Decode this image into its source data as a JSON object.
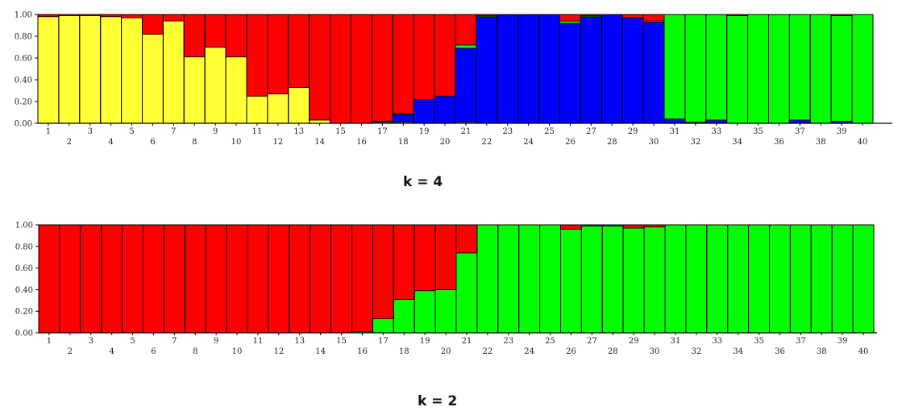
{
  "colors": {
    "yellow": "#ffff33",
    "red": "#ff0000",
    "blue": "#0000ff",
    "green": "#00ff00",
    "outline": "#000000"
  },
  "chart_data": [
    {
      "type": "bar",
      "stacked": true,
      "caption": "k = 4",
      "ylim": [
        0,
        1
      ],
      "yticks": [
        "0.00",
        "0.20",
        "0.40",
        "0.60",
        "0.80",
        "1.00"
      ],
      "categories": [
        "1",
        "2",
        "3",
        "4",
        "5",
        "6",
        "7",
        "8",
        "9",
        "10",
        "11",
        "12",
        "13",
        "14",
        "15",
        "16",
        "17",
        "18",
        "19",
        "20",
        "21",
        "22",
        "23",
        "24",
        "25",
        "26",
        "27",
        "28",
        "29",
        "30",
        "31",
        "32",
        "33",
        "34",
        "35",
        "36",
        "37",
        "38",
        "39",
        "40"
      ],
      "grid": false,
      "series": [
        {
          "color": "yellow",
          "values": [
            0.98,
            0.99,
            0.99,
            0.98,
            0.97,
            0.82,
            0.94,
            0.61,
            0.7,
            0.61,
            0.25,
            0.27,
            0.33,
            0.03,
            0.0,
            0.0,
            0.01,
            0.01,
            0.0,
            0.0,
            0.01,
            0.0,
            0.0,
            0.0,
            0.0,
            0.0,
            0.0,
            0.0,
            0.0,
            0.0,
            0.0,
            0.0,
            0.0,
            0.0,
            0.0,
            0.0,
            0.0,
            0.0,
            0.0,
            0.0
          ]
        },
        {
          "color": "blue",
          "values": [
            0.0,
            0.0,
            0.0,
            0.0,
            0.0,
            0.0,
            0.0,
            0.0,
            0.0,
            0.0,
            0.0,
            0.0,
            0.0,
            0.0,
            0.0,
            0.0,
            0.01,
            0.07,
            0.22,
            0.25,
            0.68,
            0.98,
            1.0,
            1.0,
            1.0,
            0.92,
            0.98,
            1.0,
            0.97,
            0.93,
            0.04,
            0.01,
            0.03,
            0.0,
            0.0,
            0.0,
            0.03,
            0.0,
            0.02,
            0.0
          ]
        },
        {
          "color": "green",
          "values": [
            0.0,
            0.0,
            0.0,
            0.0,
            0.0,
            0.0,
            0.0,
            0.0,
            0.0,
            0.0,
            0.0,
            0.0,
            0.0,
            0.0,
            0.0,
            0.0,
            0.0,
            0.01,
            0.0,
            0.0,
            0.03,
            0.01,
            0.0,
            0.0,
            0.0,
            0.02,
            0.01,
            0.0,
            0.0,
            0.01,
            0.96,
            0.99,
            0.97,
            0.99,
            1.0,
            1.0,
            0.97,
            1.0,
            0.97,
            1.0
          ]
        },
        {
          "color": "red",
          "values": [
            0.02,
            0.01,
            0.01,
            0.02,
            0.03,
            0.18,
            0.06,
            0.39,
            0.3,
            0.39,
            0.75,
            0.73,
            0.67,
            0.97,
            1.0,
            1.0,
            0.98,
            0.91,
            0.78,
            0.75,
            0.28,
            0.01,
            0.0,
            0.0,
            0.0,
            0.06,
            0.01,
            0.0,
            0.03,
            0.06,
            0.0,
            0.0,
            0.0,
            0.01,
            0.0,
            0.0,
            0.0,
            0.0,
            0.01,
            0.0
          ]
        }
      ]
    },
    {
      "type": "bar",
      "stacked": true,
      "caption": "k = 2",
      "ylim": [
        0,
        1
      ],
      "yticks": [
        "0.00",
        "0.20",
        "0.40",
        "0.60",
        "0.80",
        "1.00"
      ],
      "categories": [
        "1",
        "2",
        "3",
        "4",
        "5",
        "6",
        "7",
        "8",
        "9",
        "10",
        "11",
        "12",
        "13",
        "14",
        "15",
        "16",
        "17",
        "18",
        "19",
        "20",
        "21",
        "22",
        "23",
        "24",
        "25",
        "26",
        "27",
        "28",
        "29",
        "30",
        "31",
        "32",
        "33",
        "34",
        "35",
        "36",
        "37",
        "38",
        "39",
        "40"
      ],
      "grid": false,
      "series": [
        {
          "color": "green",
          "values": [
            0.0,
            0.0,
            0.0,
            0.0,
            0.0,
            0.0,
            0.0,
            0.0,
            0.0,
            0.0,
            0.0,
            0.0,
            0.0,
            0.0,
            0.0,
            0.01,
            0.13,
            0.31,
            0.39,
            0.4,
            0.74,
            1.0,
            1.0,
            1.0,
            1.0,
            0.96,
            0.99,
            0.99,
            0.97,
            0.98,
            1.0,
            1.0,
            1.0,
            1.0,
            1.0,
            1.0,
            1.0,
            1.0,
            1.0,
            1.0
          ]
        },
        {
          "color": "red",
          "values": [
            1.0,
            1.0,
            1.0,
            1.0,
            1.0,
            1.0,
            1.0,
            1.0,
            1.0,
            1.0,
            1.0,
            1.0,
            1.0,
            1.0,
            1.0,
            0.99,
            0.87,
            0.69,
            0.61,
            0.6,
            0.26,
            0.0,
            0.0,
            0.0,
            0.0,
            0.04,
            0.01,
            0.01,
            0.03,
            0.02,
            0.0,
            0.0,
            0.0,
            0.0,
            0.0,
            0.0,
            0.0,
            0.0,
            0.0,
            0.0
          ]
        }
      ]
    }
  ]
}
